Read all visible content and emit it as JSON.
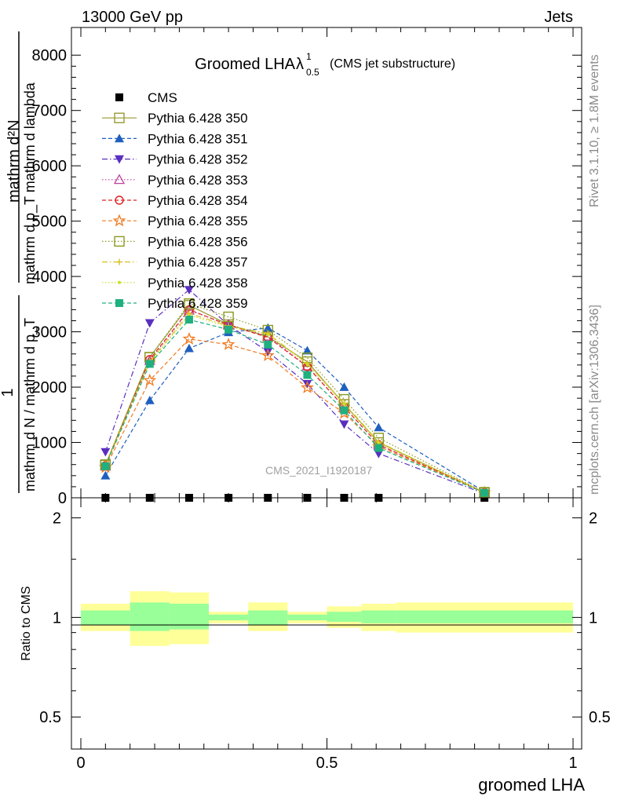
{
  "header": {
    "energy_label": "13000 GeV pp",
    "process_label": "Jets"
  },
  "side_labels": {
    "rivet": "Rivet 3.1.10, ≥ 1.8M events",
    "mcplots": "mcplots.cern.ch [arXiv:1306.3436]"
  },
  "chart_data": [
    {
      "type": "line",
      "title_main": "Groomed LHA",
      "title_lambda": "λ",
      "title_sup": "1",
      "title_sub": "0.5",
      "title_paren": "(CMS jet substructure)",
      "ylabel_num": "mathrm d²N",
      "ylabel_den": "mathrm d p_T mathrm d lambda",
      "ylabel_prefix": "1",
      "ylabel_prefix_den": "mathrm d N / mathrm d p_T",
      "analysis_tag": "CMS_2021_I1920187",
      "ylim": [
        0,
        8500
      ],
      "xlim": [
        0,
        1
      ],
      "y_ticks": [
        0,
        1000,
        2000,
        3000,
        4000,
        5000,
        6000,
        7000,
        8000
      ],
      "y_tick_labels": [
        "0",
        "1000",
        "2000",
        "3000",
        "4000",
        "5000",
        "6000",
        "7000",
        "8000"
      ],
      "x": [
        0.05,
        0.14,
        0.22,
        0.3,
        0.38,
        0.46,
        0.535,
        0.605,
        0.82
      ],
      "series": [
        {
          "name": "CMS",
          "color": "#000000",
          "marker": "square-filled",
          "dash": "none",
          "values": [
            0,
            0,
            0,
            0,
            0,
            0,
            0,
            0,
            0
          ]
        },
        {
          "name": "Pythia 6.428 350",
          "color": "#999933",
          "marker": "square-open",
          "dash": "solid",
          "values": [
            590,
            2540,
            3480,
            3130,
            2910,
            2460,
            1690,
            1000,
            95
          ]
        },
        {
          "name": "Pythia 6.428 351",
          "color": "#1f5fbf",
          "marker": "triangle-up-filled",
          "dash": "dashed",
          "values": [
            400,
            1760,
            2700,
            2990,
            3070,
            2660,
            2000,
            1270,
            110
          ]
        },
        {
          "name": "Pythia 6.428 352",
          "color": "#5a2fbf",
          "marker": "triangle-down-filled",
          "dash": "dashdot",
          "values": [
            830,
            3160,
            3760,
            3120,
            2640,
            2060,
            1330,
            800,
            75
          ]
        },
        {
          "name": "Pythia 6.428 353",
          "color": "#c040a0",
          "marker": "triangle-up-open",
          "dash": "dotted",
          "values": [
            570,
            2480,
            3390,
            3130,
            2920,
            2380,
            1640,
            960,
            95
          ]
        },
        {
          "name": "Pythia 6.428 354",
          "color": "#e02020",
          "marker": "circle-open",
          "dash": "dashed",
          "values": [
            580,
            2500,
            3400,
            3120,
            2900,
            2370,
            1640,
            960,
            95
          ]
        },
        {
          "name": "Pythia 6.428 355",
          "color": "#f07a20",
          "marker": "star-open",
          "dash": "dashed",
          "values": [
            550,
            2120,
            2870,
            2770,
            2570,
            1990,
            1530,
            930,
            95
          ]
        },
        {
          "name": "Pythia 6.428 356",
          "color": "#8a9a20",
          "marker": "square-open",
          "dash": "dotted",
          "values": [
            600,
            2540,
            3510,
            3270,
            3030,
            2530,
            1780,
            1080,
            100
          ]
        },
        {
          "name": "Pythia 6.428 357",
          "color": "#d8c020",
          "marker": "cross",
          "dash": "dashdot",
          "values": [
            580,
            2460,
            3330,
            3110,
            2970,
            2430,
            1710,
            1010,
            95
          ]
        },
        {
          "name": "Pythia 6.428 358",
          "color": "#c8e020",
          "marker": "dot",
          "dash": "dotted",
          "values": [
            570,
            2440,
            3300,
            3090,
            2960,
            2410,
            1690,
            990,
            95
          ]
        },
        {
          "name": "Pythia 6.428 359",
          "color": "#20b080",
          "marker": "square-filled",
          "dash": "dashed",
          "values": [
            570,
            2420,
            3220,
            3040,
            2770,
            2220,
            1580,
            900,
            90
          ]
        }
      ]
    },
    {
      "type": "area",
      "ylabel": "Ratio to CMS",
      "xlabel": "groomed LHA",
      "ylim": [
        0.4,
        2.3
      ],
      "log_y": true,
      "y_ticks": [
        0.5,
        1,
        2
      ],
      "y_tick_labels": [
        "0.5",
        "1",
        "2"
      ],
      "x_ticks": [
        0,
        0.5,
        1
      ],
      "x_tick_labels": [
        "0",
        "0.5",
        "1"
      ],
      "bins": [
        {
          "lo": 0.0,
          "hi": 0.1,
          "inner": [
            0.95,
            1.05
          ],
          "outer": [
            0.91,
            1.1
          ]
        },
        {
          "lo": 0.1,
          "hi": 0.18,
          "inner": [
            0.91,
            1.11
          ],
          "outer": [
            0.82,
            1.2
          ]
        },
        {
          "lo": 0.18,
          "hi": 0.26,
          "inner": [
            0.92,
            1.1
          ],
          "outer": [
            0.83,
            1.19
          ]
        },
        {
          "lo": 0.26,
          "hi": 0.34,
          "inner": [
            0.98,
            1.02
          ],
          "outer": [
            0.96,
            1.04
          ]
        },
        {
          "lo": 0.34,
          "hi": 0.42,
          "inner": [
            0.95,
            1.05
          ],
          "outer": [
            0.91,
            1.11
          ]
        },
        {
          "lo": 0.42,
          "hi": 0.5,
          "inner": [
            0.98,
            1.02
          ],
          "outer": [
            0.96,
            1.04
          ]
        },
        {
          "lo": 0.5,
          "hi": 0.57,
          "inner": [
            0.97,
            1.04
          ],
          "outer": [
            0.93,
            1.08
          ]
        },
        {
          "lo": 0.57,
          "hi": 0.64,
          "inner": [
            0.96,
            1.05
          ],
          "outer": [
            0.91,
            1.1
          ]
        },
        {
          "lo": 0.64,
          "hi": 1.0,
          "inner": [
            0.96,
            1.05
          ],
          "outer": [
            0.9,
            1.11
          ]
        }
      ]
    }
  ]
}
